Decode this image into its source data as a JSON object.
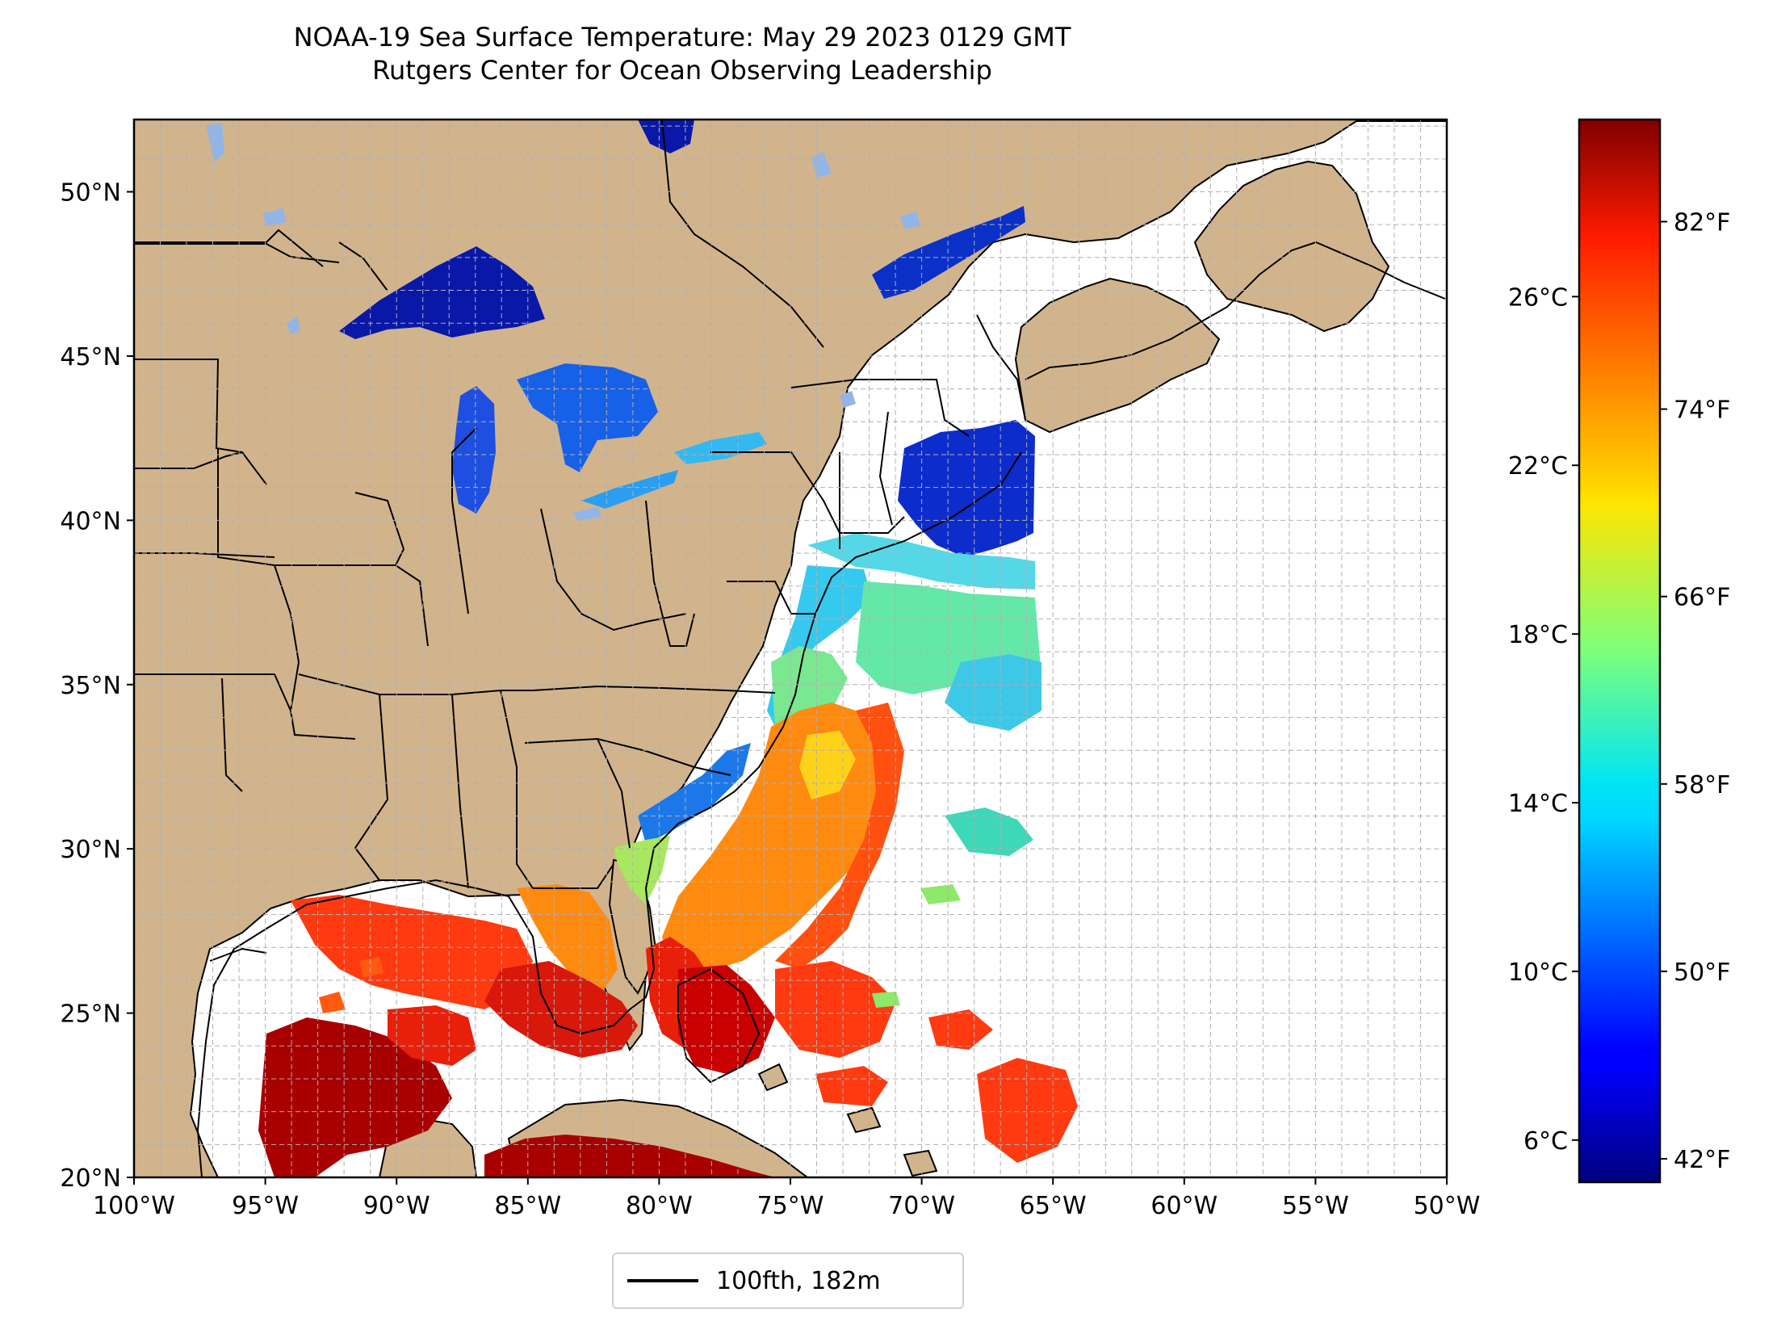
{
  "title": {
    "line1": "NOAA-19 Sea Surface Temperature: May 29 2023 0129 GMT",
    "line2": "Rutgers Center for Ocean Observing Leadership"
  },
  "legend": {
    "label": "100fth, 182m"
  },
  "colors": {
    "land": "#d2b48c",
    "no_data": "#ffffff",
    "lakes_no_data": "#92b5e8",
    "gridline": "#b0b0b0",
    "colormap": "jet"
  },
  "map": {
    "projection": "plate-carree",
    "lon_range": [
      -100,
      -50
    ],
    "lat_range": [
      20,
      52.2
    ],
    "gridlines": true,
    "x_ticks": [
      {
        "lon": -100,
        "label": "100°W"
      },
      {
        "lon": -95,
        "label": "95°W"
      },
      {
        "lon": -90,
        "label": "90°W"
      },
      {
        "lon": -85,
        "label": "85°W"
      },
      {
        "lon": -80,
        "label": "80°W"
      },
      {
        "lon": -75,
        "label": "75°W"
      },
      {
        "lon": -70,
        "label": "70°W"
      },
      {
        "lon": -65,
        "label": "65°W"
      },
      {
        "lon": -60,
        "label": "60°W"
      },
      {
        "lon": -55,
        "label": "55°W"
      },
      {
        "lon": -50,
        "label": "50°W"
      }
    ],
    "y_ticks": [
      {
        "lat": 20,
        "label": "20°N"
      },
      {
        "lat": 25,
        "label": "25°N"
      },
      {
        "lat": 30,
        "label": "30°N"
      },
      {
        "lat": 35,
        "label": "35°N"
      },
      {
        "lat": 40,
        "label": "40°N"
      },
      {
        "lat": 45,
        "label": "45°N"
      },
      {
        "lat": 50,
        "label": "50°N"
      }
    ]
  },
  "colorbar": {
    "range_c": [
      5.0,
      30.2
    ],
    "celsius_ticks": [
      {
        "value": 6,
        "label": "6°C"
      },
      {
        "value": 10,
        "label": "10°C"
      },
      {
        "value": 14,
        "label": "14°C"
      },
      {
        "value": 18,
        "label": "18°C"
      },
      {
        "value": 22,
        "label": "22°C"
      },
      {
        "value": 26,
        "label": "26°C"
      }
    ],
    "fahrenheit_ticks": [
      {
        "value_c": 5.556,
        "label": "42°F"
      },
      {
        "value_c": 10.0,
        "label": "50°F"
      },
      {
        "value_c": 14.444,
        "label": "58°F"
      },
      {
        "value_c": 18.889,
        "label": "66°F"
      },
      {
        "value_c": 23.333,
        "label": "74°F"
      },
      {
        "value_c": 27.778,
        "label": "82°F"
      }
    ]
  }
}
